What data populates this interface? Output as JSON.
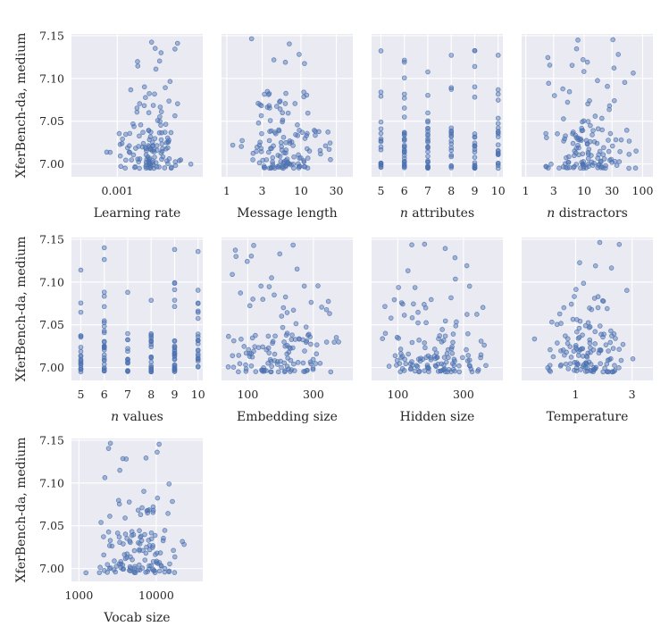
{
  "figure_ylabel": "XferBench-da, medium",
  "chart_data": [
    {
      "type": "scatter",
      "title": "",
      "xlabel": "Learning rate",
      "xlabel_italic_prefix": "",
      "ylabel": "XferBench-da, medium",
      "xscale": "log",
      "xlim": [
        0.0002,
        0.02
      ],
      "ylim": [
        6.985,
        7.152
      ],
      "xticks": [
        0.001
      ],
      "xtick_labels": [
        "0.001"
      ],
      "yticks": [
        7.0,
        7.05,
        7.1,
        7.15
      ],
      "ytick_labels": [
        "7.00",
        "7.05",
        "7.10",
        "7.15"
      ],
      "x_range": [
        0.0006,
        0.015
      ],
      "seed": 11
    },
    {
      "type": "scatter",
      "title": "",
      "xlabel": "Message length",
      "xlabel_italic_prefix": "",
      "ylabel": "",
      "xscale": "log",
      "xlim": [
        0.85,
        50
      ],
      "ylim": [
        6.985,
        7.152
      ],
      "xticks": [
        1,
        3,
        10,
        30
      ],
      "xtick_labels": [
        "1",
        "3",
        "10",
        "30"
      ],
      "yticks": [
        7.0,
        7.05,
        7.1,
        7.15
      ],
      "ytick_labels": [],
      "x_range": [
        1,
        40
      ],
      "seed": 23
    },
    {
      "type": "scatter",
      "title": "",
      "xlabel": " attributes",
      "xlabel_italic_prefix": "n",
      "ylabel": "",
      "xscale": "linear",
      "xlim": [
        4.6,
        10.2
      ],
      "ylim": [
        6.985,
        7.152
      ],
      "xticks": [
        5,
        6,
        7,
        8,
        9,
        10
      ],
      "xtick_labels": [
        "5",
        "6",
        "7",
        "8",
        "9",
        "10"
      ],
      "yticks": [
        7.0,
        7.05,
        7.1,
        7.15
      ],
      "ytick_labels": [],
      "discrete": [
        5,
        6,
        7,
        8,
        9,
        10
      ],
      "seed": 37
    },
    {
      "type": "scatter",
      "title": "",
      "xlabel": " distractors",
      "xlabel_italic_prefix": "n",
      "ylabel": "",
      "xscale": "log",
      "xlim": [
        0.85,
        150
      ],
      "ylim": [
        6.985,
        7.152
      ],
      "xticks": [
        1,
        3,
        10,
        30,
        100
      ],
      "xtick_labels": [
        "1",
        "3",
        "10",
        "30",
        "100"
      ],
      "yticks": [
        7.0,
        7.05,
        7.1,
        7.15
      ],
      "ytick_labels": [],
      "x_range": [
        1,
        120
      ],
      "seed": 41
    },
    {
      "type": "scatter",
      "title": "",
      "xlabel": " values",
      "xlabel_italic_prefix": "n",
      "ylabel": "XferBench-da, medium",
      "xscale": "linear",
      "xlim": [
        4.6,
        10.2
      ],
      "ylim": [
        6.985,
        7.152
      ],
      "xticks": [
        5,
        6,
        7,
        8,
        9,
        10
      ],
      "xtick_labels": [
        "5",
        "6",
        "7",
        "8",
        "9",
        "10"
      ],
      "yticks": [
        7.0,
        7.05,
        7.1,
        7.15
      ],
      "ytick_labels": [
        "7.00",
        "7.05",
        "7.10",
        "7.15"
      ],
      "discrete": [
        5,
        6,
        7,
        8,
        9,
        10
      ],
      "seed": 53
    },
    {
      "type": "scatter",
      "title": "",
      "xlabel": "Embedding size",
      "xlabel_italic_prefix": "",
      "ylabel": "",
      "xscale": "linear",
      "xlim": [
        20,
        420
      ],
      "ylim": [
        6.985,
        7.152
      ],
      "xticks": [
        100,
        300
      ],
      "xtick_labels": [
        "100",
        "300"
      ],
      "yticks": [
        7.0,
        7.05,
        7.1,
        7.15
      ],
      "ytick_labels": [],
      "x_range": [
        30,
        400
      ],
      "seed": 67
    },
    {
      "type": "scatter",
      "title": "",
      "xlabel": "Hidden size",
      "xlabel_italic_prefix": "",
      "ylabel": "",
      "xscale": "linear",
      "xlim": [
        20,
        420
      ],
      "ylim": [
        6.985,
        7.152
      ],
      "xticks": [
        100,
        300
      ],
      "xtick_labels": [
        "100",
        "300"
      ],
      "yticks": [
        7.0,
        7.05,
        7.1,
        7.15
      ],
      "ytick_labels": [],
      "x_range": [
        30,
        400
      ],
      "seed": 79
    },
    {
      "type": "scatter",
      "title": "",
      "xlabel": "Temperature",
      "xlabel_italic_prefix": "",
      "ylabel": "",
      "xscale": "log",
      "xlim": [
        0.35,
        4.5
      ],
      "ylim": [
        6.985,
        7.152
      ],
      "xticks": [
        1,
        3
      ],
      "xtick_labels": [
        "1",
        "3"
      ],
      "yticks": [
        7.0,
        7.05,
        7.1,
        7.15
      ],
      "ytick_labels": [],
      "x_range": [
        0.4,
        4.2
      ],
      "seed": 83
    },
    {
      "type": "scatter",
      "title": "",
      "xlabel": "Vocab size",
      "xlabel_italic_prefix": "",
      "ylabel": "XferBench-da, medium",
      "xscale": "log",
      "xlim": [
        800,
        40000
      ],
      "ylim": [
        6.985,
        7.152
      ],
      "xticks": [
        1000,
        10000
      ],
      "xtick_labels": [
        "1000",
        "10000"
      ],
      "yticks": [
        7.0,
        7.05,
        7.1,
        7.15
      ],
      "ytick_labels": [
        "7.00",
        "7.05",
        "7.10",
        "7.15"
      ],
      "x_range": [
        900,
        35000
      ],
      "seed": 97
    }
  ]
}
